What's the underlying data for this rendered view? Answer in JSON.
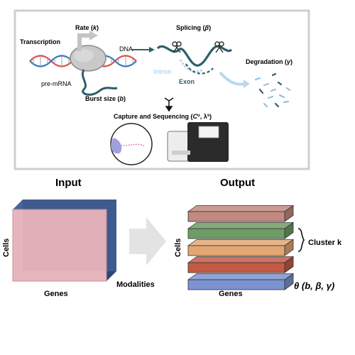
{
  "top_panel": {
    "transcription": "Transcription",
    "rate": "Rate (",
    "rate_sym": "k",
    "rate_close": ")",
    "dna": "DNA",
    "pre_mrna": "pre-mRNA",
    "burst": "Burst size (",
    "burst_sym": "b",
    "burst_close": ")",
    "splicing": "Splicing (",
    "splicing_sym": "β",
    "splicing_close": ")",
    "intron": "Intron",
    "exon": "Exon",
    "degradation": "Degradation (",
    "degradation_sym": "γ",
    "degradation_close": ")",
    "capture": "Capture and Sequencing (",
    "capture_sym1": "C",
    "capture_sup": "u",
    "capture_mid": ", λ",
    "capture_sup2": "s",
    "capture_close": ")"
  },
  "bottom": {
    "input_title": "Input",
    "output_title": "Output",
    "cells_label_left": "Cells",
    "genes_label_left": "Genes",
    "modalities_label": "Modalities",
    "cells_label_right": "Cells",
    "genes_label_right": "Genes",
    "cluster_label": "Cluster k",
    "theta_label": "θ (b, β, γ)"
  },
  "colors": {
    "panel_border": "#d0d0d0",
    "dna_red": "#d9534f",
    "dna_blue": "#3b78c2",
    "rna_teal": "#2f5f6b",
    "intron_blue": "#b9d8ee",
    "matrix_front": "#e7b3ba",
    "matrix_back": "#3f5a8e",
    "layer_1": "#c08a80",
    "layer_2": "#6f9c66",
    "layer_3": "#e3a774",
    "layer_4": "#c45a44",
    "layer_5": "#7c93cf"
  },
  "icons": [
    "rnap-icon",
    "scissors-icon",
    "cell-icon",
    "sequencer-icon",
    "arrow-right-icon",
    "brace-icon"
  ]
}
